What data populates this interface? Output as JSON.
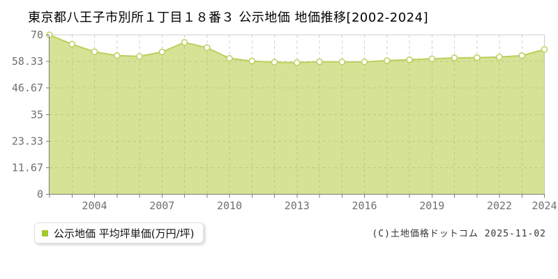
{
  "title": "東京都八王子市別所１丁目１８番３ 公示地価 地価推移[2002-2024]",
  "legend": {
    "label": "公示地価 平均坪単価(万円/坪)"
  },
  "footer": {
    "copyright": "(C)土地価格ドットコム 2025-11-02"
  },
  "colors": {
    "series_swatch": "#a3c82c",
    "line": "#b9d05c",
    "marker_fill": "#ffffff",
    "area_fill": "rgba(173,197,43,0.5)",
    "grid_dash": "#cfcfcf",
    "grid_border": "#cccccc",
    "axis": "#7a7a7a",
    "tick_label": "#6f6f6f",
    "title_text": "#000000",
    "footer_text": "#333333"
  },
  "chart_data": {
    "type": "area",
    "title": "東京都八王子市別所１丁目１８番３ 公示地価 地価推移[2002-2024]",
    "xlabel": "",
    "ylabel": "公示地価 平均坪単価(万円/坪)",
    "x_range": [
      2002,
      2024
    ],
    "ylim": [
      0,
      70
    ],
    "grid": "dashed",
    "legend_position": "bottom-left",
    "x": [
      2002,
      2003,
      2004,
      2005,
      2006,
      2007,
      2008,
      2009,
      2010,
      2011,
      2012,
      2013,
      2014,
      2015,
      2016,
      2017,
      2018,
      2019,
      2020,
      2021,
      2022,
      2023,
      2024
    ],
    "series": [
      {
        "name": "公示地価 平均坪単価(万円/坪)",
        "values": [
          70.0,
          65.9,
          62.6,
          60.9,
          60.6,
          62.5,
          66.7,
          64.4,
          59.7,
          58.5,
          58.0,
          57.8,
          58.2,
          58.1,
          58.1,
          58.7,
          59.1,
          59.5,
          59.9,
          60.0,
          60.3,
          60.9,
          63.6
        ]
      }
    ],
    "yticks": [
      {
        "v": 0,
        "label": "0"
      },
      {
        "v": 11.67,
        "label": "11.67"
      },
      {
        "v": 23.33,
        "label": "23.33"
      },
      {
        "v": 35,
        "label": "35"
      },
      {
        "v": 46.67,
        "label": "46.67"
      },
      {
        "v": 58.33,
        "label": "58.33"
      },
      {
        "v": 70,
        "label": "70"
      }
    ],
    "xticks": [
      {
        "v": 2004,
        "label": "2004"
      },
      {
        "v": 2007,
        "label": "2007"
      },
      {
        "v": 2010,
        "label": "2010"
      },
      {
        "v": 2013,
        "label": "2013"
      },
      {
        "v": 2016,
        "label": "2016"
      },
      {
        "v": 2019,
        "label": "2019"
      },
      {
        "v": 2022,
        "label": "2022"
      },
      {
        "v": 2024,
        "label": "2024"
      }
    ]
  }
}
